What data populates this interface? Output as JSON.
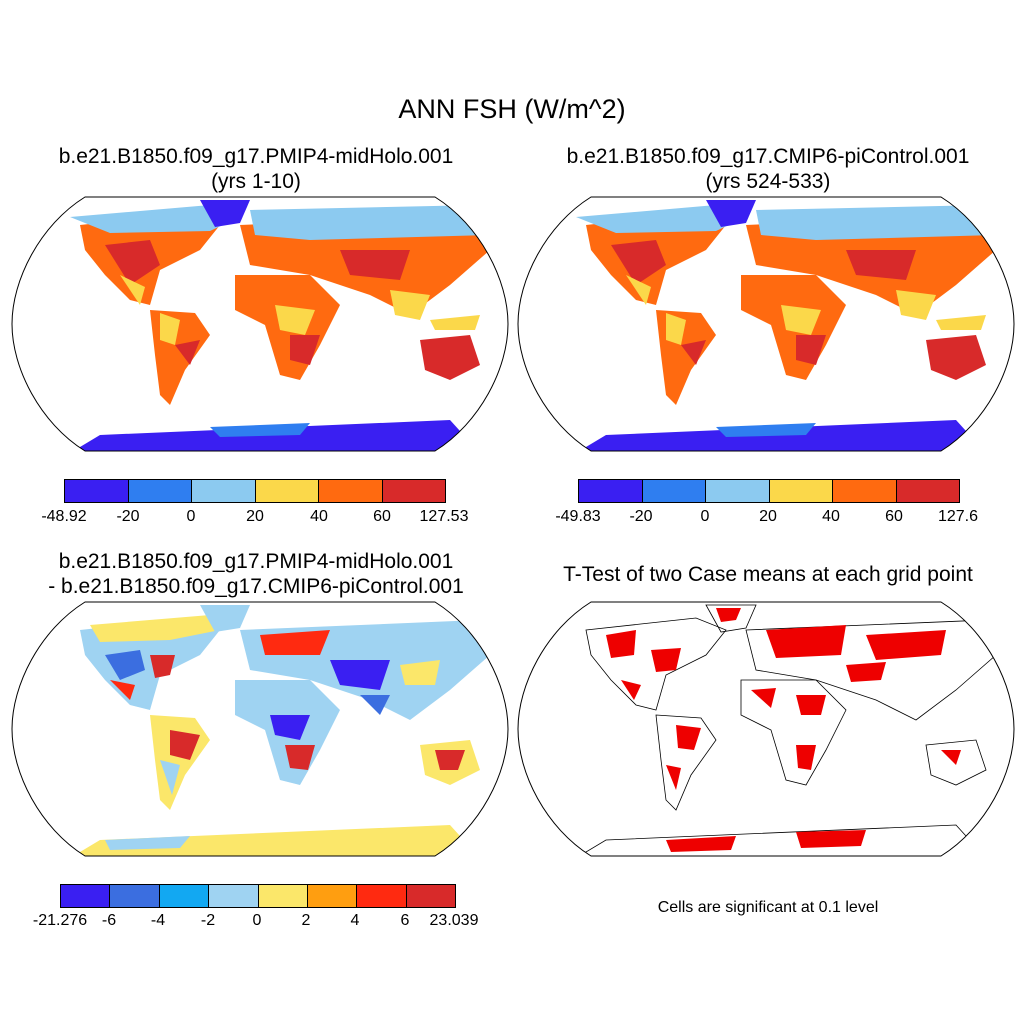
{
  "title": "ANN FSH (W/m^2)",
  "panels": [
    {
      "title_line1": "b.e21.B1850.f09_g17.PMIP4-midHolo.001",
      "title_line2": "(yrs 1-10)",
      "colorbar": {
        "colors": [
          "#3a1ff2",
          "#2f7ef0",
          "#8ccaf0",
          "#fbd84a",
          "#ff6a10",
          "#d82a2a"
        ],
        "ticks": [
          "-48.92",
          "-20",
          "0",
          "20",
          "40",
          "60",
          "127.53"
        ]
      }
    },
    {
      "title_line1": "b.e21.B1850.f09_g17.CMIP6-piControl.001",
      "title_line2": "(yrs 524-533)",
      "colorbar": {
        "colors": [
          "#3a1ff2",
          "#2f7ef0",
          "#8ccaf0",
          "#fbd84a",
          "#ff6a10",
          "#d82a2a"
        ],
        "ticks": [
          "-49.83",
          "-20",
          "0",
          "20",
          "40",
          "60",
          "127.6"
        ]
      }
    },
    {
      "title_line1": "b.e21.B1850.f09_g17.PMIP4-midHolo.001",
      "title_line2": "- b.e21.B1850.f09_g17.CMIP6-piControl.001",
      "colorbar": {
        "colors": [
          "#3a1ff2",
          "#3b6ee0",
          "#12a8f2",
          "#9fd3f2",
          "#fbe76a",
          "#ff9e10",
          "#ff2a10",
          "#d82a2a"
        ],
        "ticks": [
          "-21.276",
          "-6",
          "-4",
          "-2",
          "0",
          "2",
          "4",
          "6",
          "23.039"
        ]
      }
    },
    {
      "title_line1": "T-Test of two Case means at each grid point",
      "note": "Cells are significant at 0.1 level",
      "significant_color": "#ee0000"
    }
  ]
}
